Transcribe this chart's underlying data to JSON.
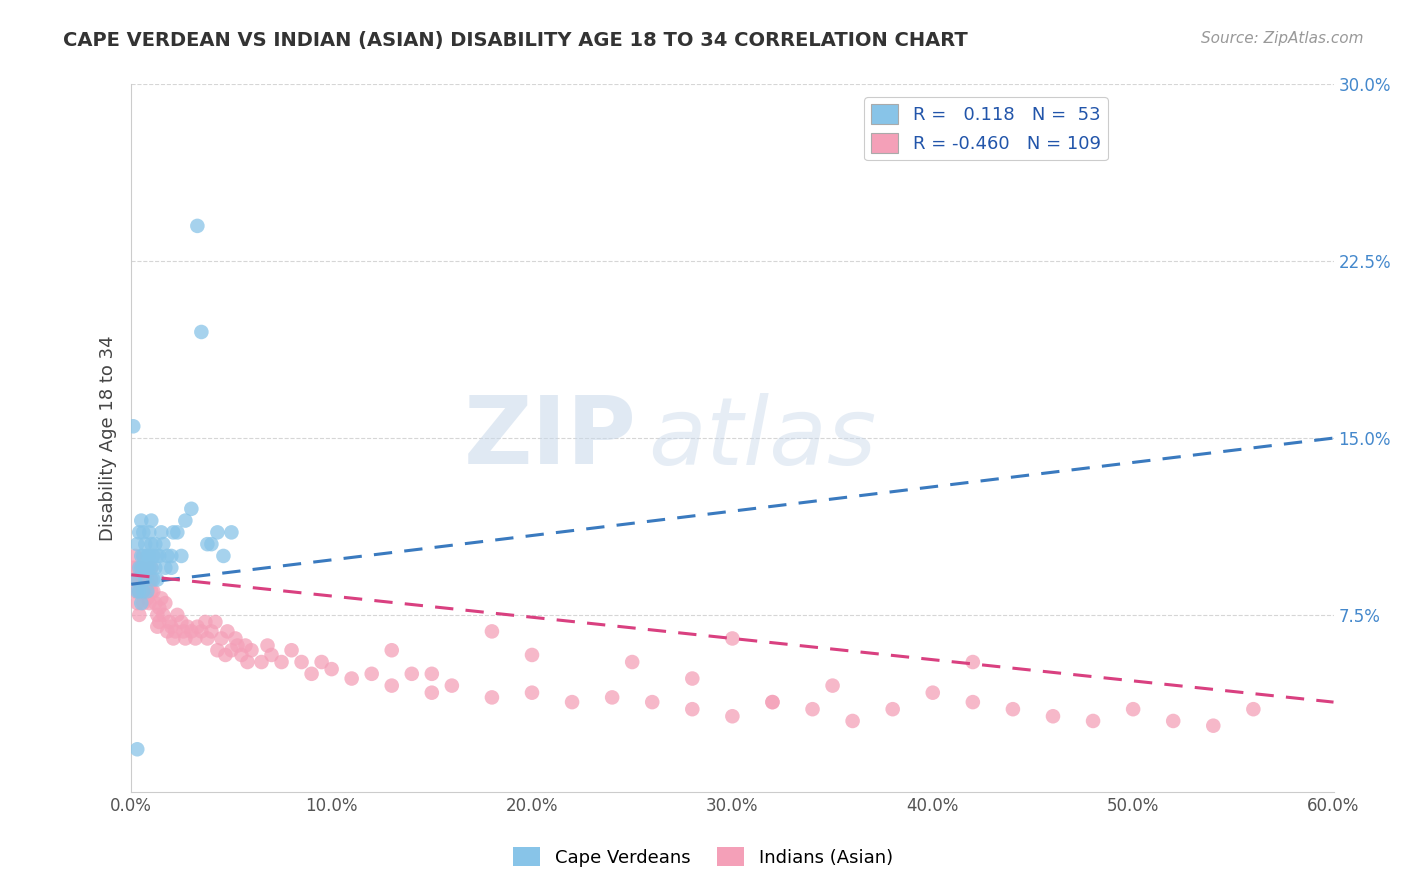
{
  "title": "CAPE VERDEAN VS INDIAN (ASIAN) DISABILITY AGE 18 TO 34 CORRELATION CHART",
  "source": "Source: ZipAtlas.com",
  "ylabel": "Disability Age 18 to 34",
  "xlim": [
    0.0,
    0.6
  ],
  "ylim": [
    0.0,
    0.3
  ],
  "xticks": [
    0.0,
    0.1,
    0.2,
    0.3,
    0.4,
    0.5,
    0.6
  ],
  "xticklabels": [
    "0.0%",
    "10.0%",
    "20.0%",
    "30.0%",
    "40.0%",
    "50.0%",
    "60.0%"
  ],
  "yticks": [
    0.075,
    0.15,
    0.225,
    0.3
  ],
  "yticklabels": [
    "7.5%",
    "15.0%",
    "22.5%",
    "30.0%"
  ],
  "r_blue": 0.118,
  "n_blue": 53,
  "r_pink": -0.46,
  "n_pink": 109,
  "blue_color": "#88c4e8",
  "pink_color": "#f4a0b8",
  "blue_line_color": "#3a7abf",
  "pink_line_color": "#d94080",
  "legend_labels": [
    "Cape Verdeans",
    "Indians (Asian)"
  ],
  "watermark_zip": "ZIP",
  "watermark_atlas": "atlas",
  "blue_line_x": [
    0.0,
    0.6
  ],
  "blue_line_y": [
    0.088,
    0.15
  ],
  "pink_line_x": [
    0.0,
    0.6
  ],
  "pink_line_y": [
    0.092,
    0.038
  ],
  "blue_x": [
    0.001,
    0.002,
    0.003,
    0.003,
    0.004,
    0.004,
    0.004,
    0.005,
    0.005,
    0.005,
    0.005,
    0.006,
    0.006,
    0.006,
    0.006,
    0.007,
    0.007,
    0.007,
    0.008,
    0.008,
    0.008,
    0.009,
    0.009,
    0.009,
    0.01,
    0.01,
    0.01,
    0.011,
    0.011,
    0.012,
    0.012,
    0.013,
    0.013,
    0.014,
    0.015,
    0.016,
    0.017,
    0.018,
    0.02,
    0.021,
    0.023,
    0.025,
    0.027,
    0.03,
    0.033,
    0.035,
    0.038,
    0.04,
    0.043,
    0.046,
    0.05,
    0.02,
    0.003
  ],
  "blue_y": [
    0.155,
    0.09,
    0.105,
    0.085,
    0.095,
    0.11,
    0.085,
    0.1,
    0.095,
    0.115,
    0.08,
    0.095,
    0.11,
    0.085,
    0.1,
    0.105,
    0.09,
    0.095,
    0.095,
    0.1,
    0.085,
    0.1,
    0.095,
    0.11,
    0.095,
    0.105,
    0.115,
    0.1,
    0.09,
    0.095,
    0.105,
    0.1,
    0.09,
    0.1,
    0.11,
    0.105,
    0.095,
    0.1,
    0.095,
    0.11,
    0.11,
    0.1,
    0.115,
    0.12,
    0.24,
    0.195,
    0.105,
    0.105,
    0.11,
    0.1,
    0.11,
    0.1,
    0.018
  ],
  "pink_x": [
    0.001,
    0.002,
    0.002,
    0.003,
    0.003,
    0.003,
    0.004,
    0.004,
    0.004,
    0.005,
    0.005,
    0.005,
    0.005,
    0.006,
    0.006,
    0.006,
    0.007,
    0.007,
    0.008,
    0.008,
    0.008,
    0.009,
    0.009,
    0.01,
    0.01,
    0.01,
    0.011,
    0.012,
    0.013,
    0.013,
    0.014,
    0.014,
    0.015,
    0.016,
    0.017,
    0.018,
    0.019,
    0.02,
    0.021,
    0.022,
    0.023,
    0.025,
    0.026,
    0.027,
    0.028,
    0.03,
    0.032,
    0.033,
    0.035,
    0.037,
    0.038,
    0.04,
    0.042,
    0.043,
    0.045,
    0.047,
    0.048,
    0.05,
    0.052,
    0.053,
    0.055,
    0.057,
    0.058,
    0.06,
    0.065,
    0.068,
    0.07,
    0.075,
    0.08,
    0.085,
    0.09,
    0.095,
    0.1,
    0.11,
    0.12,
    0.13,
    0.14,
    0.15,
    0.16,
    0.18,
    0.2,
    0.22,
    0.24,
    0.26,
    0.28,
    0.3,
    0.32,
    0.34,
    0.36,
    0.38,
    0.4,
    0.42,
    0.44,
    0.46,
    0.48,
    0.5,
    0.52,
    0.54,
    0.56,
    0.3,
    0.25,
    0.35,
    0.18,
    0.13,
    0.42,
    0.28,
    0.2,
    0.15,
    0.32
  ],
  "pink_y": [
    0.095,
    0.1,
    0.085,
    0.09,
    0.095,
    0.08,
    0.085,
    0.09,
    0.075,
    0.088,
    0.092,
    0.085,
    0.095,
    0.09,
    0.08,
    0.085,
    0.09,
    0.085,
    0.088,
    0.092,
    0.082,
    0.088,
    0.08,
    0.085,
    0.09,
    0.095,
    0.085,
    0.08,
    0.075,
    0.07,
    0.072,
    0.078,
    0.082,
    0.075,
    0.08,
    0.068,
    0.072,
    0.07,
    0.065,
    0.068,
    0.075,
    0.072,
    0.068,
    0.065,
    0.07,
    0.068,
    0.065,
    0.07,
    0.068,
    0.072,
    0.065,
    0.068,
    0.072,
    0.06,
    0.065,
    0.058,
    0.068,
    0.06,
    0.065,
    0.062,
    0.058,
    0.062,
    0.055,
    0.06,
    0.055,
    0.062,
    0.058,
    0.055,
    0.06,
    0.055,
    0.05,
    0.055,
    0.052,
    0.048,
    0.05,
    0.045,
    0.05,
    0.042,
    0.045,
    0.04,
    0.042,
    0.038,
    0.04,
    0.038,
    0.035,
    0.032,
    0.038,
    0.035,
    0.03,
    0.035,
    0.042,
    0.038,
    0.035,
    0.032,
    0.03,
    0.035,
    0.03,
    0.028,
    0.035,
    0.065,
    0.055,
    0.045,
    0.068,
    0.06,
    0.055,
    0.048,
    0.058,
    0.05,
    0.038
  ]
}
